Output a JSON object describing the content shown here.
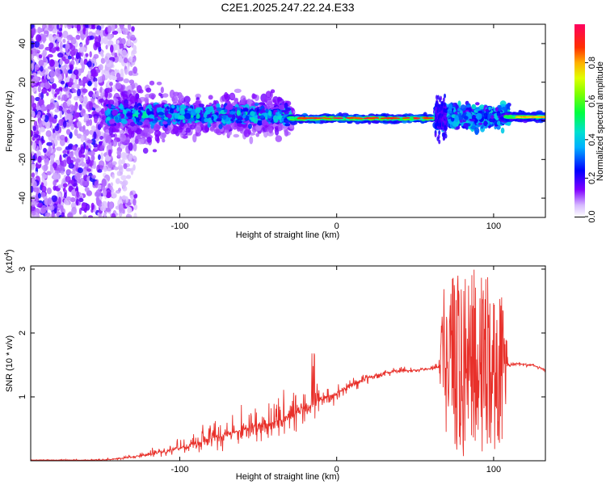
{
  "chart_data": [
    {
      "type": "heatmap",
      "title": "C2E1.2025.247.22.24.E33",
      "xlabel": "Height of straight line (km)",
      "ylabel": "Frequency (Hz)",
      "xlim": [
        -195,
        133
      ],
      "ylim": [
        -50,
        50
      ],
      "x_ticks": [
        -100,
        0,
        100
      ],
      "y_ticks": [
        -40,
        -20,
        0,
        20,
        40
      ],
      "colorbar": {
        "label": "Normalized spectral amplitude",
        "range": [
          0,
          1
        ],
        "ticks": [
          0.0,
          0.2,
          0.4,
          0.6,
          0.8
        ],
        "tick_labels": [
          "0.0",
          "0.2",
          "0.4",
          "0.6",
          "0.8"
        ],
        "colormap": [
          "#ffffff",
          "#c9a6ff",
          "#8000ff",
          "#0000ff",
          "#00c0ff",
          "#00e0c0",
          "#00ff00",
          "#c0ff00",
          "#ffff00",
          "#ff8000",
          "#ff0000",
          "#ff0080"
        ]
      },
      "regions": [
        {
          "name": "diffuse noise",
          "x_range": [
            -195,
            -130
          ],
          "freq_range": [
            -50,
            50
          ]
        },
        {
          "name": "broad band",
          "x_range": [
            -145,
            -30
          ],
          "freq_range": [
            -8,
            12
          ]
        },
        {
          "name": "narrow line",
          "x_range": [
            -30,
            65
          ],
          "freq_center": 1
        },
        {
          "name": "broad band",
          "x_range": [
            65,
            108
          ],
          "freq_range": [
            -10,
            12
          ]
        },
        {
          "name": "narrow line",
          "x_range": [
            108,
            133
          ],
          "freq_center": 2
        }
      ]
    },
    {
      "type": "line",
      "xlabel": "Height of straight line (km)",
      "ylabel": "SNR (10 * v/v)",
      "scale_label": "(x10",
      "scale_exponent": "4",
      "scale_close": ")",
      "xlim": [
        -195,
        133
      ],
      "ylim": [
        0,
        3.05
      ],
      "x_ticks": [
        -100,
        0,
        100
      ],
      "y_ticks": [
        1,
        2,
        3
      ],
      "line_color": "#e8302a",
      "series": [
        {
          "name": "SNR",
          "x": [
            -195,
            -150,
            -140,
            -130,
            -120,
            -110,
            -100,
            -90,
            -80,
            -70,
            -60,
            -50,
            -40,
            -30,
            -20,
            -15,
            -10,
            -5,
            0,
            10,
            20,
            30,
            40,
            50,
            60,
            65,
            68,
            75,
            85,
            95,
            105,
            110,
            115,
            125,
            133
          ],
          "y": [
            0.01,
            0.01,
            0.03,
            0.06,
            0.1,
            0.14,
            0.2,
            0.28,
            0.35,
            0.42,
            0.48,
            0.55,
            0.6,
            0.68,
            0.82,
            0.9,
            0.95,
            1.0,
            1.05,
            1.2,
            1.3,
            1.38,
            1.4,
            1.42,
            1.44,
            1.46,
            1.45,
            1.45,
            1.45,
            1.45,
            1.45,
            1.5,
            1.52,
            1.5,
            1.42
          ],
          "envelope_upper": [
            0.02,
            0.03,
            0.06,
            0.12,
            0.2,
            0.32,
            0.4,
            0.55,
            0.7,
            0.85,
            0.9,
            1.0,
            1.1,
            1.2,
            1.3,
            1.75,
            1.2,
            1.22,
            1.24,
            1.35,
            1.4,
            1.45,
            1.48,
            1.5,
            1.5,
            1.6,
            2.7,
            2.9,
            3.05,
            2.95,
            2.6,
            1.55,
            1.55,
            1.52,
            1.45
          ],
          "envelope_lower": [
            0.0,
            0.0,
            0.0,
            0.02,
            0.04,
            0.05,
            0.07,
            0.09,
            0.1,
            0.12,
            0.15,
            0.2,
            0.25,
            0.3,
            0.4,
            0.55,
            0.55,
            0.7,
            0.8,
            1.05,
            1.2,
            1.3,
            1.35,
            1.38,
            1.4,
            1.42,
            0.5,
            0.1,
            0.05,
            0.1,
            0.15,
            1.45,
            1.48,
            1.46,
            1.38
          ]
        }
      ]
    }
  ]
}
